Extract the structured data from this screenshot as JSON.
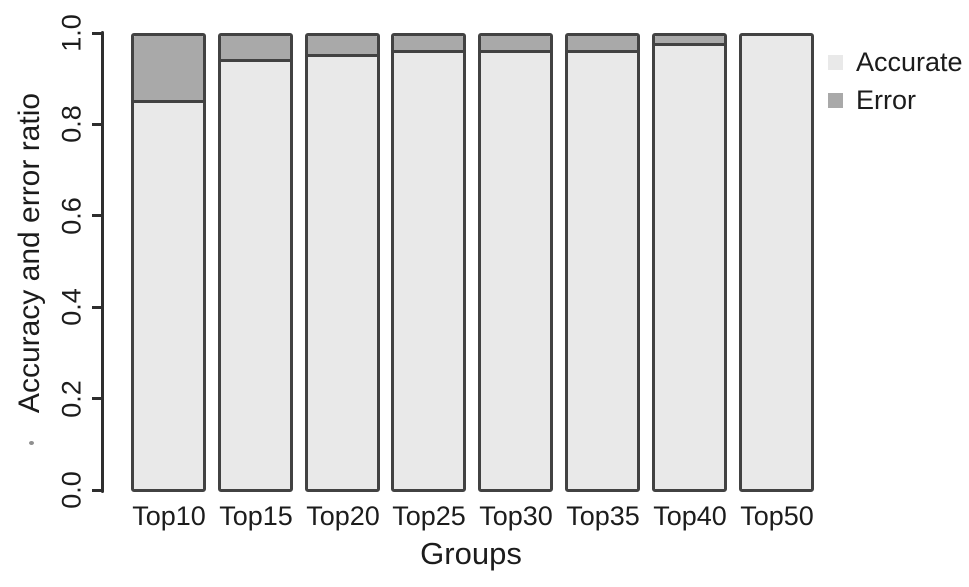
{
  "chart_data": {
    "type": "bar",
    "stacked": true,
    "title": "",
    "xlabel": "Groups",
    "ylabel": "Accuracy and error ratio",
    "categories": [
      "Top10",
      "Top15",
      "Top20",
      "Top25",
      "Top30",
      "Top35",
      "Top40",
      "Top50"
    ],
    "series": [
      {
        "name": "Accurate",
        "color": "#e9e9e9",
        "values": [
          0.85,
          0.94,
          0.95,
          0.96,
          0.96,
          0.96,
          0.975,
          1.0
        ]
      },
      {
        "name": "Error",
        "color": "#a9a9a9",
        "values": [
          0.15,
          0.06,
          0.05,
          0.04,
          0.04,
          0.04,
          0.025,
          0.0
        ]
      }
    ],
    "ylim": [
      0.0,
      1.0
    ],
    "yticks": [
      "0.0",
      "0.2",
      "0.4",
      "0.6",
      "0.8",
      "1.0"
    ],
    "grid": false,
    "legend_position": "right",
    "bar_border_color": "#424242",
    "axis_color": "#2e2e2e",
    "text_color": "#1c1c1c",
    "background_color": "#ffffff"
  }
}
